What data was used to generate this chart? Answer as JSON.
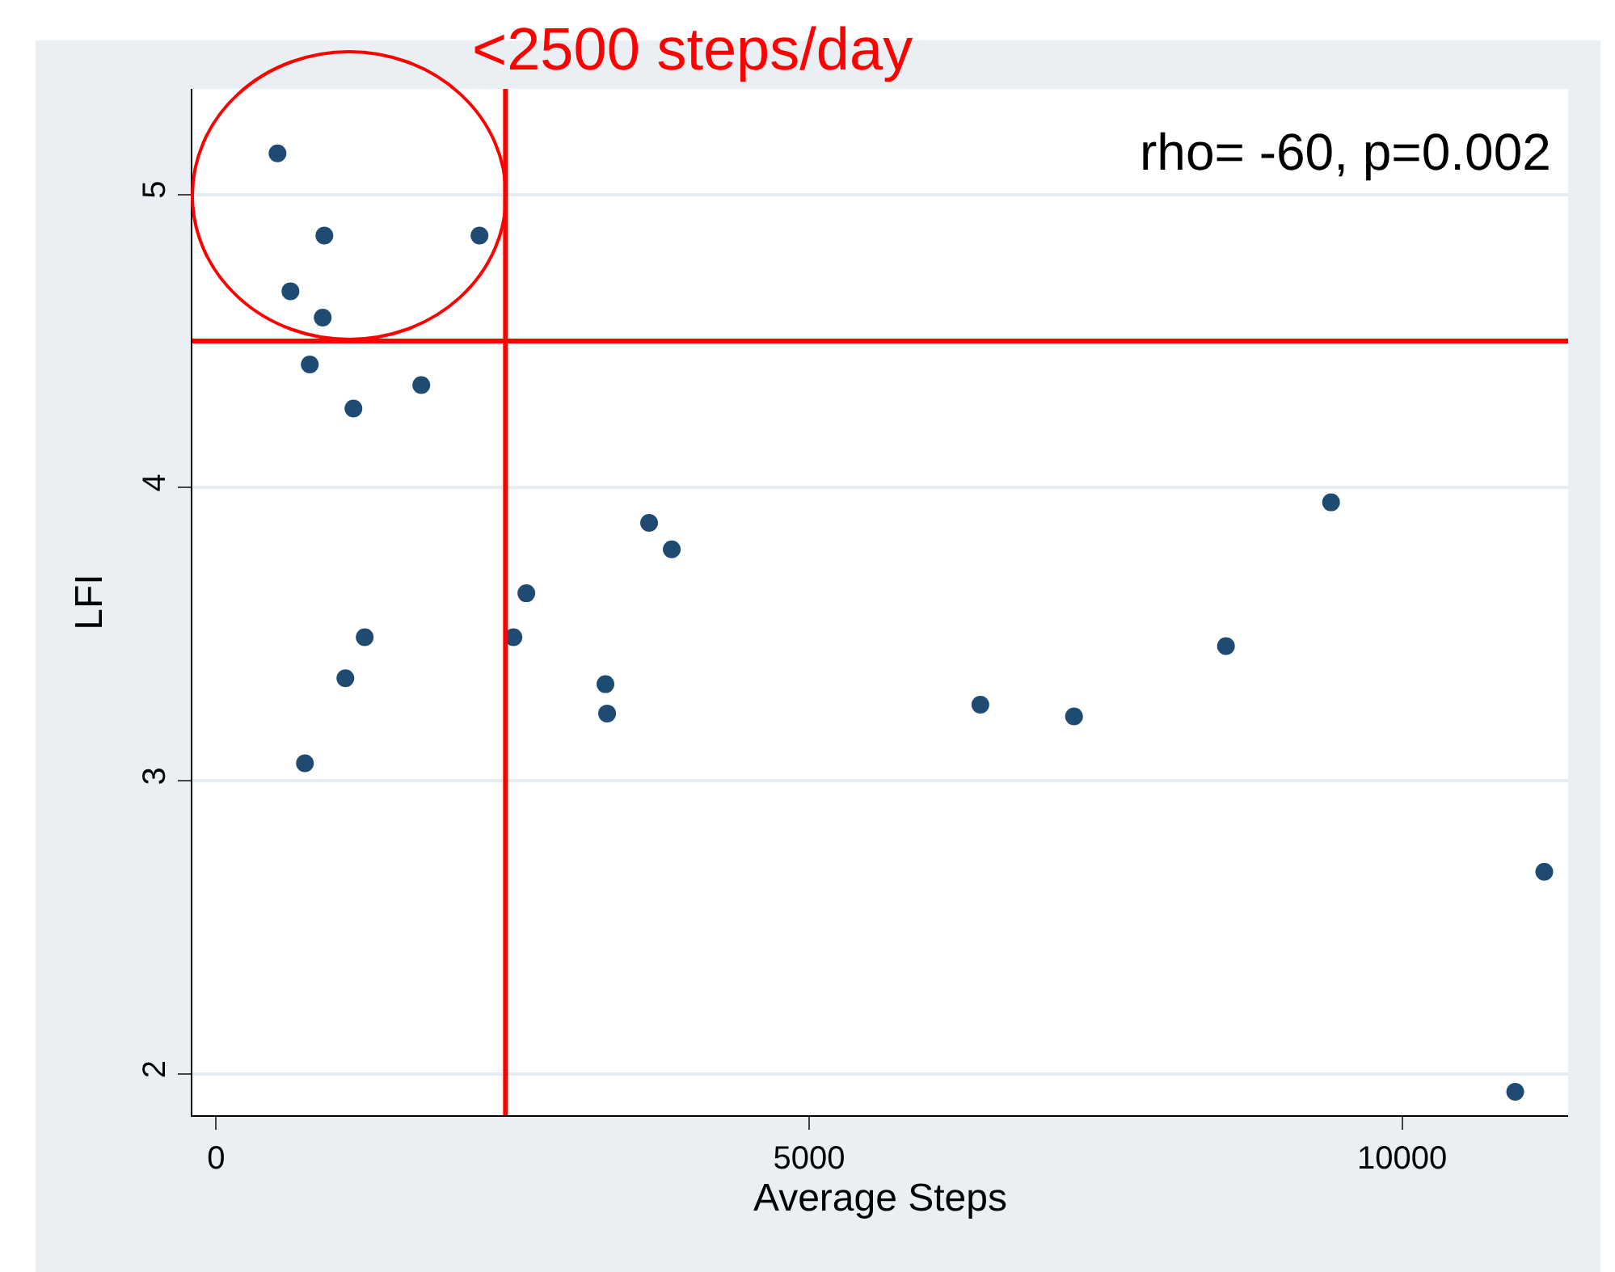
{
  "chart_data": {
    "type": "scatter",
    "xlabel": "Average Steps",
    "ylabel": "LFI",
    "x": [
      518,
      913,
      2221,
      627,
      899,
      790,
      1158,
      1730,
      3651,
      3842,
      2616,
      2507,
      1253,
      1090,
      3283,
      3297,
      749,
      6444,
      7234,
      8515,
      9401,
      11199,
      10954
    ],
    "values": [
      5.14,
      4.86,
      4.86,
      4.67,
      4.58,
      4.42,
      4.27,
      4.35,
      3.88,
      3.79,
      3.64,
      3.49,
      3.49,
      3.35,
      3.33,
      3.23,
      3.06,
      3.26,
      3.22,
      3.46,
      3.95,
      2.69,
      1.94
    ],
    "color": "#1f4b72",
    "marker": "circle",
    "xlim": [
      -200,
      11400
    ],
    "ylim": [
      1.86,
      5.36
    ],
    "xticks": [
      0,
      5000,
      10000
    ],
    "yticks": [
      2,
      3,
      4,
      5
    ],
    "grid": "y",
    "ref_lines": [
      {
        "axis": "x",
        "value": 2440,
        "color": "#ff0000"
      },
      {
        "axis": "y",
        "value": 4.5,
        "color": "#ff0000"
      }
    ],
    "annotations": [
      "<2500 steps/day",
      "rho= -60, p=0.002"
    ]
  }
}
